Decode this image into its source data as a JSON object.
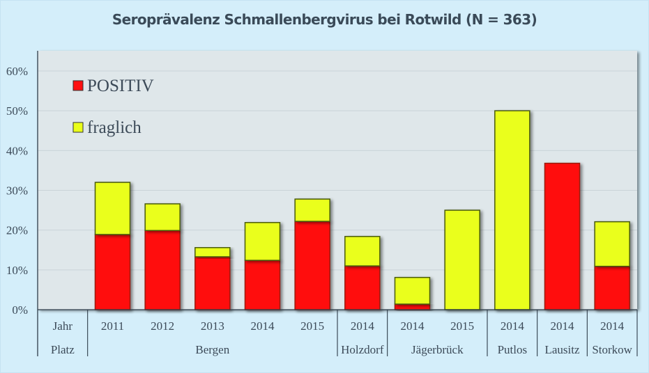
{
  "chart_data": {
    "type": "bar",
    "stacked": true,
    "title": "Seroprävalenz Schmallenbergvirus bei Rotwild (N = 363)",
    "xlabel": "",
    "ylabel": "",
    "ylim": [
      0,
      60
    ],
    "yticks": [
      0,
      10,
      20,
      30,
      40,
      50,
      60
    ],
    "ytick_labels": [
      "0%",
      "10%",
      "20%",
      "30%",
      "40%",
      "50%",
      "60%"
    ],
    "grid": true,
    "legend_position": "top-left",
    "row_headers": [
      "Jahr",
      "Platz"
    ],
    "categories": [
      "2011",
      "2012",
      "2013",
      "2014",
      "2015",
      "2014",
      "2014",
      "2015",
      "2014",
      "2014",
      "2014"
    ],
    "groups": [
      {
        "label": "Bergen",
        "span": 5
      },
      {
        "label": "Holzdorf",
        "span": 1
      },
      {
        "label": "Jägerbrück",
        "span": 2
      },
      {
        "label": "Putlos",
        "span": 1
      },
      {
        "label": "Lausitz",
        "span": 1
      },
      {
        "label": "Storkow",
        "span": 1
      }
    ],
    "series": [
      {
        "name": "POSITIV",
        "color": "#ff1010",
        "values": [
          18.9,
          19.9,
          13.3,
          12.4,
          22.2,
          11.0,
          1.4,
          0,
          0,
          36.8,
          10.9
        ]
      },
      {
        "name": "fraglich",
        "color": "#eaff1a",
        "values": [
          13.1,
          6.7,
          2.3,
          9.5,
          5.6,
          7.4,
          6.7,
          25.0,
          50.0,
          0,
          11.2
        ]
      }
    ]
  }
}
